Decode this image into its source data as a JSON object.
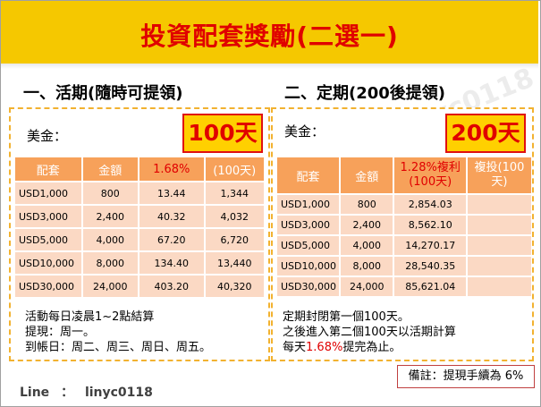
{
  "title": "投資配套獎勵(二選一)",
  "watermark": "Line：linyc0118",
  "left": {
    "heading": "一、活期(隨時可提領)",
    "currency_label": "美金：",
    "days": "100天",
    "headers": [
      "配套",
      "金額",
      "1.68%",
      "(100天)"
    ],
    "rows": [
      [
        "USD1,000",
        "800",
        "13.44",
        "1,344"
      ],
      [
        "USD3,000",
        "2,400",
        "40.32",
        "4,032"
      ],
      [
        "USD5,000",
        "4,000",
        "67.20",
        "6,720"
      ],
      [
        "USD10,000",
        "8,000",
        "134.40",
        "13,440"
      ],
      [
        "USD30,000",
        "24,000",
        "403.20",
        "40,320"
      ]
    ],
    "notes": [
      "活動每日凌晨1~2點結算",
      "提現：周一。",
      "到帳日：周二、周三、周日、周五。"
    ]
  },
  "right": {
    "heading": "二、定期(200後提領)",
    "currency_label": "美金：",
    "days": "200天",
    "headers": [
      "配套",
      "金額",
      "1.28%複利(100天)",
      "複投(100天)"
    ],
    "rows": [
      [
        "USD1,000",
        "800",
        "2,854.03",
        ""
      ],
      [
        "USD3,000",
        "2,400",
        "8,562.10",
        ""
      ],
      [
        "USD5,000",
        "4,000",
        "14,270.17",
        ""
      ],
      [
        "USD10,000",
        "8,000",
        "28,540.35",
        ""
      ],
      [
        "USD30,000",
        "24,000",
        "85,621.04",
        ""
      ]
    ],
    "notes": {
      "line1": "定期封閉第一個100天。",
      "line2": "之後進入第二個100天以活期計算",
      "line3_pre": "每天",
      "line3_rate": "1.68%",
      "line3_post": "提完為止。"
    }
  },
  "footer": {
    "line_label": "Line",
    "colon": "：",
    "line_id": "linyc0118"
  },
  "remark": "備註：提現手續為 6%"
}
